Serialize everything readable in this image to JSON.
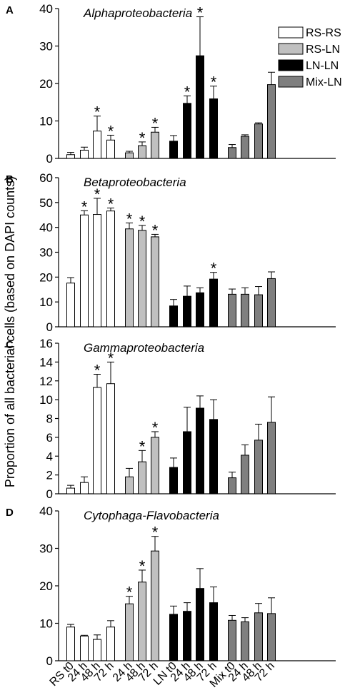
{
  "ylabel": "Proportion of all bacterial cells (based on DAPI counts)",
  "legend": [
    {
      "label": "RS-RS",
      "color": "#ffffff"
    },
    {
      "label": "RS-LN",
      "color": "#c0c0c0"
    },
    {
      "label": "LN-LN",
      "color": "#000000"
    },
    {
      "label": "Mix-LN",
      "color": "#7f7f7f"
    }
  ],
  "x_tick_labels": [
    "RS t0",
    "24 h",
    "48 h",
    "72 h",
    "24 h",
    "48 h",
    "72 h",
    "LN t0",
    "24 h",
    "48 h",
    "72 h",
    "Mix t0",
    "24 h",
    "48 h",
    "72 h"
  ],
  "chart_data": [
    {
      "type": "bar",
      "panel": "A",
      "title": "Alphaproteobacteria",
      "ylim": [
        0,
        40
      ],
      "yticks": [
        0,
        10,
        20,
        30,
        40
      ],
      "series": [
        {
          "name": "RS-RS",
          "color": "#ffffff",
          "values": [
            1.0,
            2.2,
            7.3,
            4.9
          ],
          "errors": [
            0.6,
            0.8,
            4.0,
            1.3
          ],
          "significant": [
            false,
            false,
            true,
            true
          ]
        },
        {
          "name": "RS-LN",
          "color": "#c0c0c0",
          "values": [
            1.5,
            3.4,
            7.0
          ],
          "errors": [
            0.4,
            1.0,
            1.3
          ],
          "significant": [
            false,
            true,
            true
          ]
        },
        {
          "name": "LN-LN",
          "color": "#000000",
          "values": [
            4.6,
            14.7,
            27.4,
            15.9
          ],
          "errors": [
            1.5,
            2.0,
            10.4,
            3.4
          ],
          "significant": [
            false,
            true,
            true,
            true
          ]
        },
        {
          "name": "Mix-LN",
          "color": "#7f7f7f",
          "values": [
            2.9,
            5.9,
            9.2,
            19.7
          ],
          "errors": [
            0.8,
            0.4,
            0.3,
            3.3
          ],
          "significant": [
            false,
            false,
            false,
            false
          ]
        }
      ]
    },
    {
      "type": "bar",
      "panel": "B",
      "title": "Betaproteobacteria",
      "ylim": [
        0,
        60
      ],
      "yticks": [
        0,
        10,
        20,
        30,
        40,
        50,
        60
      ],
      "series": [
        {
          "name": "RS-RS",
          "color": "#ffffff",
          "values": [
            17.6,
            45.0,
            45.2,
            46.6
          ],
          "errors": [
            2.2,
            1.7,
            6.5,
            1.2
          ],
          "significant": [
            false,
            true,
            true,
            true
          ]
        },
        {
          "name": "RS-LN",
          "color": "#c0c0c0",
          "values": [
            39.4,
            38.8,
            36.2
          ],
          "errors": [
            2.4,
            2.0,
            1.0
          ],
          "significant": [
            true,
            true,
            true
          ]
        },
        {
          "name": "LN-LN",
          "color": "#000000",
          "values": [
            8.4,
            12.3,
            13.7,
            19.2
          ],
          "errors": [
            2.6,
            4.1,
            2.0,
            2.7
          ],
          "significant": [
            false,
            false,
            false,
            true
          ]
        },
        {
          "name": "Mix-LN",
          "color": "#7f7f7f",
          "values": [
            13.1,
            13.1,
            12.9,
            19.4
          ],
          "errors": [
            2.1,
            2.6,
            3.3,
            2.7
          ],
          "significant": [
            false,
            false,
            false,
            false
          ]
        }
      ]
    },
    {
      "type": "bar",
      "panel": "C",
      "title": "Gammaproteobacteria",
      "ylim": [
        0,
        16
      ],
      "yticks": [
        0,
        2,
        4,
        6,
        8,
        10,
        12,
        14,
        16
      ],
      "series": [
        {
          "name": "RS-RS",
          "color": "#ffffff",
          "values": [
            0.6,
            1.2,
            11.3,
            11.7
          ],
          "errors": [
            0.3,
            0.6,
            1.4,
            2.3
          ],
          "significant": [
            false,
            false,
            true,
            true
          ]
        },
        {
          "name": "RS-LN",
          "color": "#c0c0c0",
          "values": [
            1.8,
            3.4,
            6.0
          ],
          "errors": [
            0.9,
            1.2,
            0.6
          ],
          "significant": [
            false,
            true,
            true
          ]
        },
        {
          "name": "LN-LN",
          "color": "#000000",
          "values": [
            2.8,
            6.6,
            9.1,
            7.9
          ],
          "errors": [
            1.0,
            2.6,
            1.3,
            2.1
          ],
          "significant": [
            false,
            false,
            false,
            false
          ]
        },
        {
          "name": "Mix-LN",
          "color": "#7f7f7f",
          "values": [
            1.7,
            4.1,
            5.7,
            7.6
          ],
          "errors": [
            0.6,
            1.1,
            1.7,
            2.7
          ],
          "significant": [
            false,
            false,
            false,
            false
          ]
        }
      ]
    },
    {
      "type": "bar",
      "panel": "D",
      "title": "Cytophaga-Flavobacteria",
      "ylim": [
        0,
        40
      ],
      "yticks": [
        0,
        10,
        20,
        30,
        40
      ],
      "series": [
        {
          "name": "RS-RS",
          "color": "#ffffff",
          "values": [
            9.0,
            6.6,
            5.7,
            9.0
          ],
          "errors": [
            0.7,
            0.2,
            1.2,
            1.7
          ],
          "significant": [
            false,
            false,
            false,
            false
          ]
        },
        {
          "name": "RS-LN",
          "color": "#c0c0c0",
          "values": [
            15.2,
            21.0,
            29.3
          ],
          "errors": [
            2.0,
            3.2,
            3.9
          ],
          "significant": [
            true,
            true,
            true
          ]
        },
        {
          "name": "LN-LN",
          "color": "#000000",
          "values": [
            12.4,
            13.2,
            19.3,
            15.5
          ],
          "errors": [
            2.2,
            2.3,
            5.3,
            4.2
          ],
          "significant": [
            false,
            false,
            false,
            false
          ]
        },
        {
          "name": "Mix-LN",
          "color": "#7f7f7f",
          "values": [
            10.8,
            10.4,
            12.8,
            12.6
          ],
          "errors": [
            1.3,
            1.1,
            2.5,
            4.2
          ],
          "significant": [
            false,
            false,
            false,
            false
          ]
        }
      ]
    }
  ]
}
